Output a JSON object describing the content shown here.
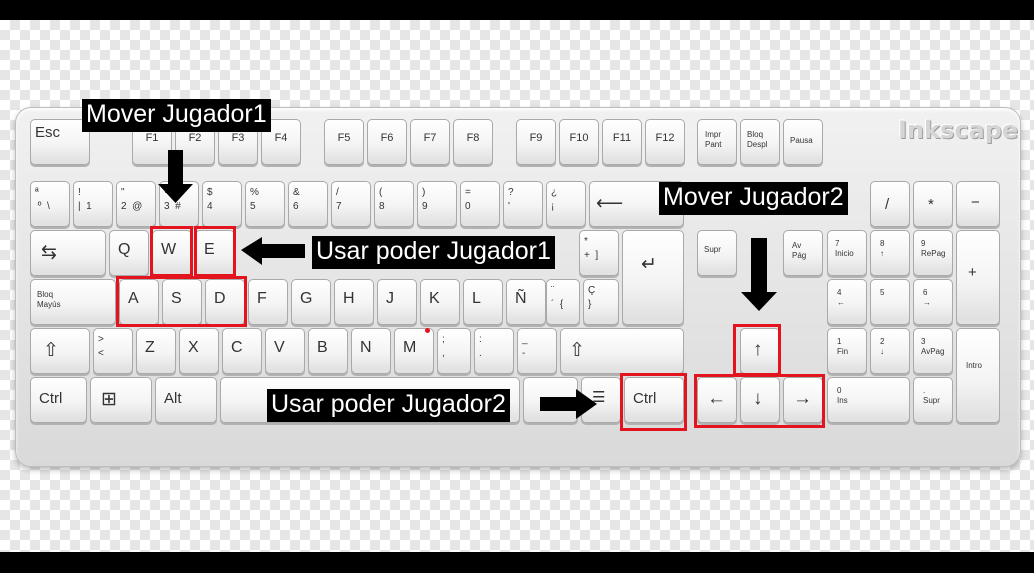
{
  "colors": {
    "highlight": "#e3141e",
    "label_bg": "#000000",
    "label_fg": "#ffffff"
  },
  "brand": "Inkscape",
  "labels": {
    "mover_jugador1": "Mover Jugador1",
    "usar_poder_jugador1": "Usar poder Jugador1",
    "mover_jugador2": "Mover Jugador2",
    "usar_poder_jugador2": "Usar poder Jugador2"
  },
  "keys": {
    "esc": "Esc",
    "f1": "F1",
    "f2": "F2",
    "f3": "F3",
    "f4": "F4",
    "f5": "F5",
    "f6": "F6",
    "f7": "F7",
    "f8": "F8",
    "f9": "F9",
    "f10": "F10",
    "f11": "F11",
    "f12": "F12",
    "impr_pant": "Impr\nPant",
    "bloq_despl": "Bloq\nDespl",
    "pausa": "Pausa",
    "num1": "ª\n º  \\",
    "num2": "!\n|  1",
    "num3": "\"\n2  @",
    "num4": "·\n3  #",
    "num5": "$\n4",
    "num6": "%\n5",
    "num7": "&\n6",
    "num8": "/\n7",
    "num9": "(\n8",
    "num10": ")\n9",
    "num11": "=\n0",
    "num12": "?\n'",
    "num13": "¿\n¡",
    "backspace": "⟵",
    "tab": "⇆",
    "q": "Q",
    "w": "W",
    "e": "E",
    "plus": "*\n+  ]",
    "enter": "↵",
    "bloq_mayus": "Bloq\nMayús",
    "a": "A",
    "s": "S",
    "d": "D",
    "f": "F",
    "g": "G",
    "h": "H",
    "j": "J",
    "k": "K",
    "l": "L",
    "nn": "Ñ",
    "accent": "¨\n´  {",
    "cedilla": "Ç\n}",
    "shift_left": "⇧",
    "angle": ">\n<",
    "z": "Z",
    "x": "X",
    "c": "C",
    "v": "V",
    "b": "B",
    "n": "N",
    "m": "M",
    "comma": ";\n,",
    "period": ":\n.",
    "dash": "_\n-",
    "shift_right": "⇧",
    "ctrl_left": "Ctrl",
    "win": "⊞",
    "alt": "Alt",
    "menu": "☰",
    "ctrl_right": "Ctrl",
    "supr": "Supr",
    "av_pag": "Av\nPág",
    "arrow_up": "↑",
    "arrow_left": "←",
    "arrow_down": "↓",
    "arrow_right": "→",
    "np_div": "/",
    "np_mul": "*",
    "np_minus": "−",
    "np7": "7\nInicio",
    "np8": "8\n↑",
    "np9": "9\nRePag",
    "np_plus": "+",
    "np4": "4\n←",
    "np5": "5",
    "np6": "6\n→",
    "np1": "1\nFin",
    "np2": "2\n↓",
    "np3": "3\nAvPag",
    "np_enter": "Intro",
    "np0": "0\nIns",
    "np_dot": ".\nSupr"
  }
}
